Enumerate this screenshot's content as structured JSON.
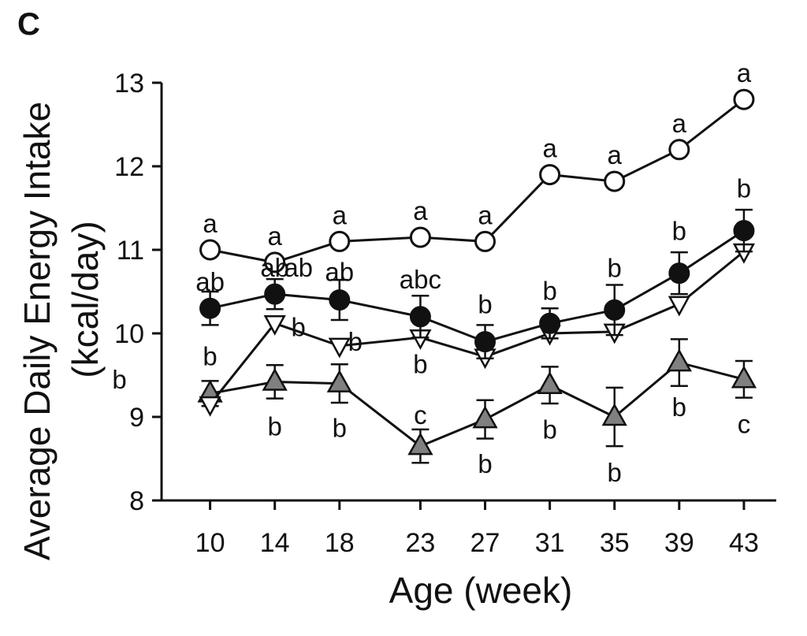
{
  "panel_label": "C",
  "chart_data": {
    "type": "line",
    "xlabel": "Age (week)",
    "ylabel_line1": "Average Daily Energy Intake",
    "ylabel_line2": "(kcal/day)",
    "x": [
      10,
      14,
      18,
      23,
      27,
      31,
      35,
      39,
      43
    ],
    "x_tick_labels": [
      "10",
      "14",
      "18",
      "23",
      "27",
      "31",
      "35",
      "39",
      "43"
    ],
    "y_ticks": [
      8,
      9,
      10,
      11,
      12,
      13
    ],
    "y_tick_labels": [
      "8",
      "9",
      "10",
      "11",
      "12",
      "13"
    ],
    "xlim": [
      7,
      45
    ],
    "ylim": [
      8,
      13
    ],
    "grid": false,
    "series": [
      {
        "marker": "circle-open",
        "color": "#ffffff",
        "values": [
          11.0,
          10.85,
          11.1,
          11.15,
          11.1,
          11.9,
          11.82,
          12.2,
          12.8
        ],
        "errors": [
          0,
          0,
          0,
          0,
          0,
          0,
          0,
          0,
          0
        ],
        "letters": [
          "a",
          "a",
          "a",
          "a",
          "a",
          "a",
          "a",
          "a",
          "a"
        ]
      },
      {
        "marker": "circle-filled",
        "color": "#111111",
        "values": [
          10.3,
          10.47,
          10.4,
          10.2,
          9.9,
          10.12,
          10.28,
          10.72,
          11.23
        ],
        "errors": [
          0.2,
          0.18,
          0.24,
          0.25,
          0.2,
          0.18,
          0.3,
          0.25,
          0.25
        ],
        "letters": [
          "ab",
          "ab",
          "ab",
          "abc",
          "b",
          "b",
          "b",
          "b",
          "b"
        ]
      },
      {
        "marker": "triangle-down-open",
        "color": "#ffffff",
        "values": [
          9.15,
          10.12,
          9.85,
          9.95,
          9.72,
          10.0,
          10.02,
          10.35,
          10.98
        ],
        "errors": [
          0,
          0,
          0,
          0,
          0,
          0,
          0,
          0,
          0
        ],
        "letters": [
          "b",
          "b",
          "b",
          "b",
          "",
          "",
          "",
          "",
          ""
        ]
      },
      {
        "marker": "triangle-up-gray",
        "color": "#808080",
        "values": [
          9.28,
          9.42,
          9.4,
          8.65,
          8.97,
          9.38,
          9.0,
          9.65,
          9.45
        ],
        "errors": [
          0.15,
          0.2,
          0.23,
          0.2,
          0.23,
          0.22,
          0.35,
          0.28,
          0.22
        ],
        "letters": [
          "b",
          "b",
          "b",
          "c",
          "b",
          "b",
          "b",
          "b",
          "c"
        ]
      }
    ]
  }
}
